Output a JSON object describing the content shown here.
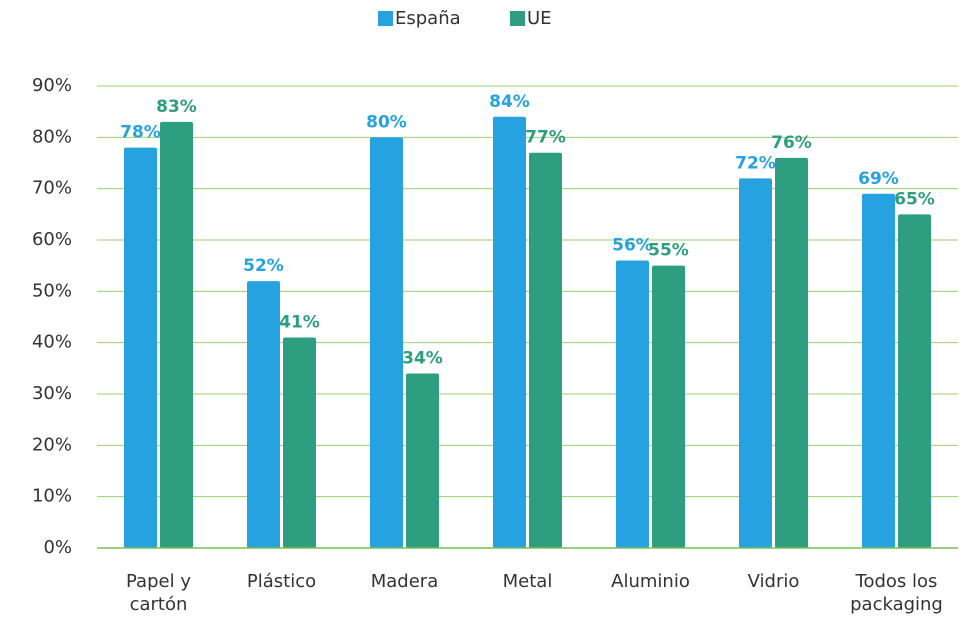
{
  "chart_data": {
    "type": "bar",
    "categories": [
      "Papel y cartón",
      "Plástico",
      "Madera",
      "Metal",
      "Aluminio",
      "Vidrio",
      "Todos los packaging"
    ],
    "series": [
      {
        "name": "España",
        "color": "#27a2e0",
        "values": [
          78,
          52,
          80,
          84,
          56,
          72,
          69
        ],
        "value_labels": [
          "78%",
          "52%",
          "80%",
          "84%",
          "56%",
          "72%",
          "69%"
        ]
      },
      {
        "name": "UE",
        "color": "#2e9e80",
        "values": [
          83,
          41,
          34,
          77,
          55,
          76,
          65
        ],
        "value_labels": [
          "83%",
          "41%",
          "34%",
          "77%",
          "55%",
          "76%",
          "65%"
        ]
      }
    ],
    "ylim": [
      0,
      90
    ],
    "yticks": [
      {
        "value": 0,
        "label": "0%"
      },
      {
        "value": 10,
        "label": "10%"
      },
      {
        "value": 20,
        "label": "20%"
      },
      {
        "value": 30,
        "label": "30%"
      },
      {
        "value": 40,
        "label": "40%"
      },
      {
        "value": 50,
        "label": "50%"
      },
      {
        "value": 60,
        "label": "60%"
      },
      {
        "value": 70,
        "label": "70%"
      },
      {
        "value": 80,
        "label": "80%"
      },
      {
        "value": 90,
        "label": "90%"
      }
    ],
    "grid": true,
    "legend": "top"
  }
}
